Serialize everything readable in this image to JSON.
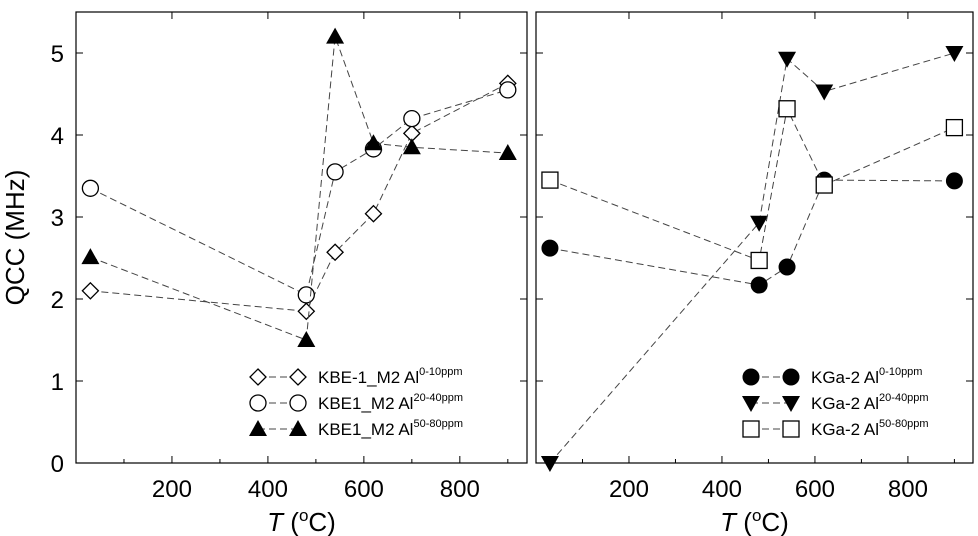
{
  "chart_data": [
    {
      "type": "line",
      "panel": "left",
      "ylabel": "QCC (MHz)",
      "xlabel": {
        "italic": "T",
        "rest": " (",
        "sup": "o",
        "end": "C)"
      },
      "xlim": [
        0,
        940
      ],
      "ylim": [
        0,
        5.5
      ],
      "xticks": [
        200,
        400,
        600,
        800
      ],
      "yticks": [
        0,
        1,
        2,
        3,
        4,
        5
      ],
      "grid": false,
      "legend_position": "bottom-right",
      "series": [
        {
          "name": "KBE-1_M2 Al",
          "sup": "0-10ppm",
          "marker": "diamond-open",
          "x": [
            30,
            480,
            540,
            620,
            700,
            900
          ],
          "y": [
            2.1,
            1.85,
            2.57,
            3.04,
            4.02,
            4.63
          ]
        },
        {
          "name": "KBE1_M2 Al",
          "sup": "20-40ppm",
          "marker": "circle-open",
          "x": [
            30,
            480,
            540,
            620,
            700,
            900
          ],
          "y": [
            3.35,
            2.05,
            3.55,
            3.83,
            4.2,
            4.55
          ]
        },
        {
          "name": "KBE1_M2 Al",
          "sup": "50-80ppm",
          "marker": "triangle-up-filled",
          "x": [
            30,
            480,
            540,
            620,
            700,
            900
          ],
          "y": [
            2.51,
            1.5,
            5.2,
            3.9,
            3.85,
            3.78
          ]
        }
      ]
    },
    {
      "type": "line",
      "panel": "right",
      "ylabel": "",
      "xlabel": {
        "italic": "T",
        "rest": " (",
        "sup": "o",
        "end": "C)"
      },
      "xlim": [
        0,
        940
      ],
      "ylim": [
        0,
        5.5
      ],
      "xticks": [
        200,
        400,
        600,
        800
      ],
      "yticks": [
        0,
        1,
        2,
        3,
        4,
        5
      ],
      "grid": false,
      "legend_position": "bottom-right",
      "series": [
        {
          "name": "KGa-2 Al",
          "sup": "0-10ppm",
          "marker": "circle-filled",
          "x": [
            30,
            480,
            540,
            620,
            900
          ],
          "y": [
            2.62,
            2.17,
            2.39,
            3.45,
            3.44
          ]
        },
        {
          "name": "KGa-2 Al",
          "sup": "20-40ppm",
          "marker": "triangle-down-filled",
          "x": [
            30,
            480,
            540,
            620,
            900
          ],
          "y": [
            0,
            2.93,
            4.93,
            4.53,
            5.0
          ]
        },
        {
          "name": "KGa-2 Al",
          "sup": "50-80ppm",
          "marker": "square-open",
          "x": [
            30,
            480,
            540,
            620,
            900
          ],
          "y": [
            3.45,
            2.47,
            4.32,
            3.39,
            4.09
          ]
        }
      ]
    }
  ]
}
